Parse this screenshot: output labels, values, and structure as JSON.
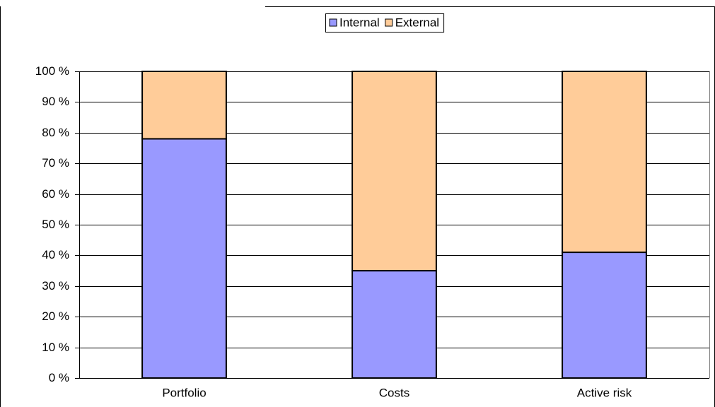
{
  "chart_data": {
    "type": "stacked_bar",
    "categories": [
      "Portfolio",
      "Costs",
      "Active risk"
    ],
    "series": [
      {
        "name": "Internal",
        "color": "#9999ff",
        "values": [
          78,
          35,
          41
        ]
      },
      {
        "name": "External",
        "color": "#ffcc99",
        "values": [
          22,
          65,
          59
        ]
      }
    ],
    "ylim": [
      0,
      100
    ],
    "yticks": [
      {
        "value": 0,
        "label": "0 %"
      },
      {
        "value": 10,
        "label": "10 %"
      },
      {
        "value": 20,
        "label": "20 %"
      },
      {
        "value": 30,
        "label": "30 %"
      },
      {
        "value": 40,
        "label": "40 %"
      },
      {
        "value": 50,
        "label": "50 %"
      },
      {
        "value": 60,
        "label": "60 %"
      },
      {
        "value": 70,
        "label": "70 %"
      },
      {
        "value": 80,
        "label": "80 %"
      },
      {
        "value": 90,
        "label": "90 %"
      },
      {
        "value": 100,
        "label": "100 %"
      }
    ],
    "grid": true,
    "legend": "top"
  }
}
